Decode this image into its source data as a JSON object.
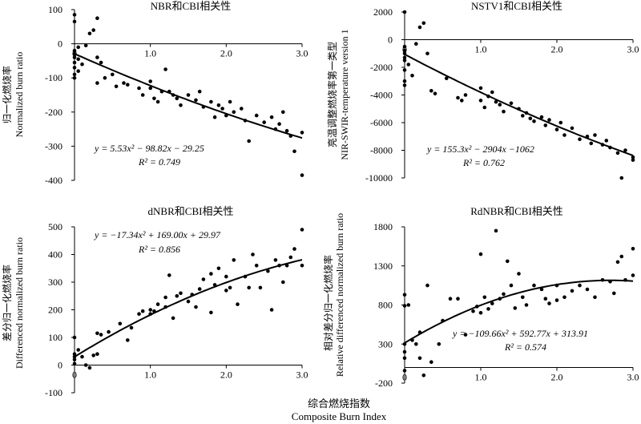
{
  "figure": {
    "xlabel_cn": "综合燃烧指数",
    "xlabel_en": "Composite Burn Index"
  },
  "chart_data": [
    {
      "type": "scatter",
      "title": "NBR和CBI相关性",
      "ylabel_cn": "归一化燃烧率",
      "ylabel_en": "Normalized burn ratio",
      "xlim": [
        0,
        3.0
      ],
      "ylim": [
        -400,
        100
      ],
      "xticks": [
        0,
        1.0,
        2.0,
        3.0
      ],
      "yticks": [
        -400,
        -300,
        -200,
        -100,
        0,
        100
      ],
      "equation": "y = 5.53x² − 98.82x − 29.25",
      "r2": "R² = 0.749",
      "fit": {
        "a": 5.53,
        "b": -98.82,
        "c": -29.25
      },
      "points": [
        [
          0,
          85
        ],
        [
          0,
          65
        ],
        [
          0,
          -20
        ],
        [
          0,
          -30
        ],
        [
          0,
          -40
        ],
        [
          0,
          -55
        ],
        [
          0,
          -70
        ],
        [
          0,
          -90
        ],
        [
          0,
          -100
        ],
        [
          0.05,
          -10
        ],
        [
          0.05,
          -45
        ],
        [
          0.05,
          -80
        ],
        [
          0.1,
          -60
        ],
        [
          0.15,
          -5
        ],
        [
          0.2,
          30
        ],
        [
          0.25,
          40
        ],
        [
          0.3,
          -40
        ],
        [
          0.3,
          75
        ],
        [
          0.35,
          -55
        ],
        [
          0.3,
          -115
        ],
        [
          0.4,
          -100
        ],
        [
          0.5,
          -90
        ],
        [
          0.55,
          -125
        ],
        [
          0.65,
          -115
        ],
        [
          0.7,
          -120
        ],
        [
          0.85,
          -130
        ],
        [
          0.9,
          -150
        ],
        [
          1.0,
          -110
        ],
        [
          1.0,
          -130
        ],
        [
          1.05,
          -160
        ],
        [
          1.1,
          -170
        ],
        [
          1.15,
          -140
        ],
        [
          1.2,
          -75
        ],
        [
          1.25,
          -140
        ],
        [
          1.3,
          -150
        ],
        [
          1.35,
          -160
        ],
        [
          1.4,
          -180
        ],
        [
          1.5,
          -150
        ],
        [
          1.6,
          -165
        ],
        [
          1.65,
          -140
        ],
        [
          1.7,
          -185
        ],
        [
          1.8,
          -170
        ],
        [
          1.85,
          -215
        ],
        [
          1.9,
          -180
        ],
        [
          1.95,
          -190
        ],
        [
          2.0,
          -210
        ],
        [
          2.05,
          -170
        ],
        [
          2.1,
          -200
        ],
        [
          2.2,
          -190
        ],
        [
          2.25,
          -225
        ],
        [
          2.3,
          -285
        ],
        [
          2.4,
          -210
        ],
        [
          2.5,
          -230
        ],
        [
          2.6,
          -215
        ],
        [
          2.65,
          -250
        ],
        [
          2.7,
          -235
        ],
        [
          2.75,
          -200
        ],
        [
          2.8,
          -255
        ],
        [
          2.85,
          -270
        ],
        [
          2.9,
          -315
        ],
        [
          3.0,
          -260
        ],
        [
          3.0,
          -385
        ]
      ]
    },
    {
      "type": "scatter",
      "title": "NSTV1和CBI相关性",
      "ylabel_cn": "亮温调整燃烧率第一类型",
      "ylabel_en": "NIR-SWIR-temperature version 1",
      "xlim": [
        0,
        3.0
      ],
      "ylim": [
        -10000,
        2000
      ],
      "xticks": [
        0,
        1.0,
        2.0,
        3.0
      ],
      "yticks": [
        -10000,
        -8000,
        -6000,
        -4000,
        -2000,
        0,
        2000
      ],
      "equation": "y = 155.3x² − 2904x −1062",
      "r2": "R² = 0.762",
      "fit": {
        "a": 155.3,
        "b": -2904,
        "c": -1062
      },
      "points": [
        [
          0,
          2000
        ],
        [
          0,
          -500
        ],
        [
          0,
          -800
        ],
        [
          0,
          -1000
        ],
        [
          0,
          -1300
        ],
        [
          0,
          -1500
        ],
        [
          0,
          -2200
        ],
        [
          0,
          -3000
        ],
        [
          0,
          -3300
        ],
        [
          0.05,
          -1800
        ],
        [
          0.1,
          -2600
        ],
        [
          0.15,
          -300
        ],
        [
          0.2,
          900
        ],
        [
          0.25,
          1200
        ],
        [
          0.3,
          -1000
        ],
        [
          0.35,
          -3700
        ],
        [
          0.4,
          -3900
        ],
        [
          0.55,
          -2800
        ],
        [
          0.7,
          -4200
        ],
        [
          0.75,
          -4400
        ],
        [
          0.8,
          -4000
        ],
        [
          1.0,
          -3500
        ],
        [
          1.0,
          -4400
        ],
        [
          1.05,
          -4900
        ],
        [
          1.1,
          -4100
        ],
        [
          1.15,
          -3800
        ],
        [
          1.2,
          -4500
        ],
        [
          1.25,
          -4700
        ],
        [
          1.3,
          -5200
        ],
        [
          1.4,
          -4600
        ],
        [
          1.5,
          -5000
        ],
        [
          1.55,
          -5500
        ],
        [
          1.6,
          -5300
        ],
        [
          1.65,
          -5700
        ],
        [
          1.7,
          -5900
        ],
        [
          1.8,
          -5600
        ],
        [
          1.85,
          -6200
        ],
        [
          1.9,
          -5800
        ],
        [
          2.0,
          -6500
        ],
        [
          2.05,
          -6000
        ],
        [
          2.1,
          -6900
        ],
        [
          2.2,
          -6400
        ],
        [
          2.3,
          -7200
        ],
        [
          2.4,
          -7000
        ],
        [
          2.45,
          -7500
        ],
        [
          2.5,
          -6900
        ],
        [
          2.6,
          -7600
        ],
        [
          2.65,
          -7300
        ],
        [
          2.7,
          -7800
        ],
        [
          2.8,
          -8200
        ],
        [
          2.85,
          -10000
        ],
        [
          2.9,
          -8000
        ],
        [
          3.0,
          -8500
        ],
        [
          3.0,
          -8700
        ]
      ]
    },
    {
      "type": "scatter",
      "title": "dNBR和CBI相关性",
      "ylabel_cn": "差分归一化燃烧率",
      "ylabel_en": "Differenced normalized burn ratio",
      "xlim": [
        0,
        3.0
      ],
      "ylim": [
        -100,
        500
      ],
      "xticks": [
        0,
        1.0,
        2.0,
        3.0
      ],
      "yticks": [
        -100,
        0,
        100,
        200,
        300,
        400,
        500
      ],
      "equation": "y = −17.34x² + 169.00x + 29.97",
      "r2": "R² = 0.856",
      "fit": {
        "a": -17.34,
        "b": 169.0,
        "c": 29.97
      },
      "points": [
        [
          0,
          100
        ],
        [
          0,
          40
        ],
        [
          0,
          30
        ],
        [
          0,
          20
        ],
        [
          0,
          5
        ],
        [
          0.05,
          55
        ],
        [
          0.1,
          30
        ],
        [
          0.15,
          0
        ],
        [
          0.2,
          -10
        ],
        [
          0.25,
          35
        ],
        [
          0.3,
          40
        ],
        [
          0.3,
          115
        ],
        [
          0.35,
          110
        ],
        [
          0.45,
          120
        ],
        [
          0.6,
          150
        ],
        [
          0.7,
          90
        ],
        [
          0.75,
          135
        ],
        [
          0.85,
          185
        ],
        [
          0.9,
          195
        ],
        [
          1.0,
          185
        ],
        [
          1.0,
          200
        ],
        [
          1.05,
          195
        ],
        [
          1.1,
          220
        ],
        [
          1.2,
          210
        ],
        [
          1.2,
          245
        ],
        [
          1.25,
          325
        ],
        [
          1.3,
          170
        ],
        [
          1.35,
          250
        ],
        [
          1.4,
          260
        ],
        [
          1.5,
          230
        ],
        [
          1.55,
          255
        ],
        [
          1.6,
          210
        ],
        [
          1.65,
          275
        ],
        [
          1.7,
          310
        ],
        [
          1.8,
          330
        ],
        [
          1.8,
          190
        ],
        [
          1.85,
          290
        ],
        [
          1.9,
          350
        ],
        [
          2.0,
          270
        ],
        [
          2.0,
          320
        ],
        [
          2.05,
          280
        ],
        [
          2.1,
          380
        ],
        [
          2.15,
          220
        ],
        [
          2.25,
          320
        ],
        [
          2.3,
          280
        ],
        [
          2.35,
          400
        ],
        [
          2.4,
          360
        ],
        [
          2.45,
          280
        ],
        [
          2.55,
          340
        ],
        [
          2.6,
          200
        ],
        [
          2.65,
          380
        ],
        [
          2.7,
          360
        ],
        [
          2.75,
          300
        ],
        [
          2.8,
          360
        ],
        [
          2.85,
          390
        ],
        [
          2.9,
          420
        ],
        [
          3.0,
          360
        ],
        [
          3.0,
          490
        ]
      ]
    },
    {
      "type": "scatter",
      "title": "RdNBR和CBI相关性",
      "ylabel_cn": "相对差分归一化燃烧率",
      "ylabel_en": "Relative differenced normalized burn ratio",
      "xlim": [
        0,
        3.0
      ],
      "ylim": [
        -200,
        1800
      ],
      "xticks": [
        0,
        1.0,
        2.0,
        3.0
      ],
      "yticks": [
        -200,
        300,
        800,
        1300,
        1800
      ],
      "equation": "y = −109.66x² + 592.77x + 313.91",
      "r2": "R² = 0.574",
      "fit": {
        "a": -109.66,
        "b": 592.77,
        "c": 313.91
      },
      "points": [
        [
          0,
          930
        ],
        [
          0,
          790
        ],
        [
          0,
          300
        ],
        [
          0,
          200
        ],
        [
          0,
          120
        ],
        [
          0,
          -40
        ],
        [
          0.05,
          800
        ],
        [
          0.1,
          350
        ],
        [
          0.15,
          300
        ],
        [
          0.2,
          450
        ],
        [
          0.2,
          120
        ],
        [
          0.25,
          -100
        ],
        [
          0.3,
          1050
        ],
        [
          0.35,
          70
        ],
        [
          0.45,
          300
        ],
        [
          0.5,
          600
        ],
        [
          0.6,
          880
        ],
        [
          0.7,
          880
        ],
        [
          0.8,
          420
        ],
        [
          0.9,
          720
        ],
        [
          0.95,
          780
        ],
        [
          1.0,
          1450
        ],
        [
          1.0,
          700
        ],
        [
          1.05,
          900
        ],
        [
          1.1,
          750
        ],
        [
          1.15,
          820
        ],
        [
          1.2,
          1750
        ],
        [
          1.25,
          880
        ],
        [
          1.3,
          940
        ],
        [
          1.35,
          1360
        ],
        [
          1.4,
          1050
        ],
        [
          1.45,
          760
        ],
        [
          1.5,
          1200
        ],
        [
          1.55,
          900
        ],
        [
          1.6,
          800
        ],
        [
          1.7,
          1050
        ],
        [
          1.8,
          1000
        ],
        [
          1.85,
          880
        ],
        [
          1.9,
          820
        ],
        [
          2.0,
          1050
        ],
        [
          2.0,
          860
        ],
        [
          2.1,
          900
        ],
        [
          2.2,
          980
        ],
        [
          2.3,
          1050
        ],
        [
          2.4,
          1000
        ],
        [
          2.5,
          900
        ],
        [
          2.6,
          1120
        ],
        [
          2.7,
          1100
        ],
        [
          2.75,
          950
        ],
        [
          2.8,
          1350
        ],
        [
          2.85,
          1420
        ],
        [
          2.9,
          1120
        ],
        [
          3.0,
          1520
        ],
        [
          3.0,
          1180
        ]
      ]
    }
  ]
}
